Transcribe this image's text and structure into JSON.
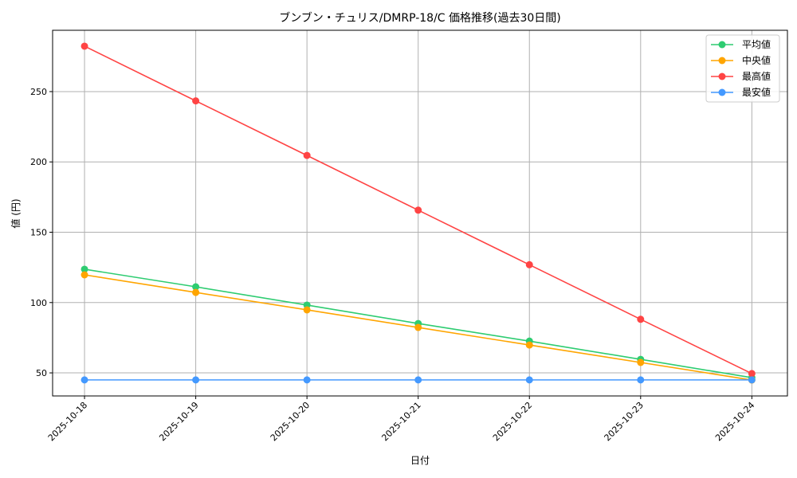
{
  "chart_data": {
    "type": "line",
    "title": "ブンブン・チュリス/DMRP-18/C 価格推移(過去30日間)",
    "xlabel": "日付",
    "ylabel": "値 (円)",
    "categories": [
      "2025-10-18",
      "2025-10-19",
      "2025-10-20",
      "2025-10-21",
      "2025-10-22",
      "2025-10-23",
      "2025-10-24"
    ],
    "ylim": [
      33.6,
      293.6
    ],
    "yticks": [
      50,
      100,
      150,
      200,
      250
    ],
    "grid": true,
    "legend_position": "top-right",
    "series": [
      {
        "name": "平均値",
        "color": "#2ecc71",
        "values": [
          123.7,
          111.2,
          98.2,
          85.1,
          72.6,
          59.6,
          46.6
        ]
      },
      {
        "name": "中央値",
        "color": "#ffa500",
        "values": [
          119.7,
          107.2,
          94.8,
          82.3,
          69.8,
          57.4,
          44.9
        ]
      },
      {
        "name": "最高値",
        "color": "#ff4444",
        "values": [
          282.3,
          243.4,
          204.6,
          165.7,
          126.9,
          88.1,
          49.5
        ]
      },
      {
        "name": "最安値",
        "color": "#4499ff",
        "values": [
          45,
          45,
          45,
          45,
          45,
          45,
          45
        ]
      }
    ]
  }
}
